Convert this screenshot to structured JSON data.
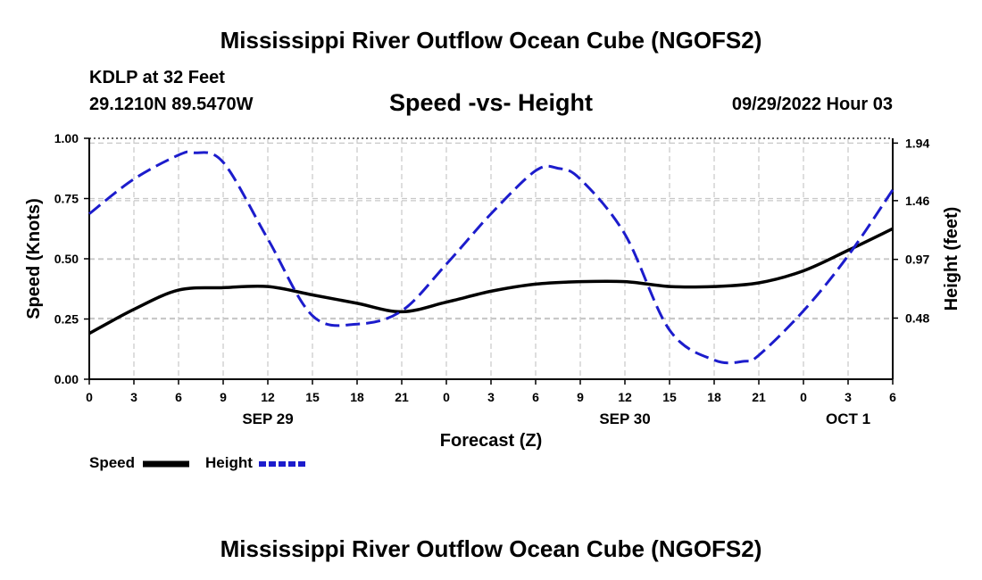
{
  "header": {
    "title": "Mississippi River Outflow Ocean Cube (NGOFS2)",
    "station": "KDLP at 32 Feet",
    "coords": "29.1210N  89.5470W",
    "subtitle": "Speed -vs- Height",
    "datetime": "09/29/2022 Hour 03"
  },
  "footer": {
    "title": "Mississippi River Outflow Ocean Cube (NGOFS2)"
  },
  "colors": {
    "speed": "#000000",
    "height": "#1c1ccc",
    "grid": "#c8c8c8"
  },
  "chart_data": {
    "type": "line",
    "xlabel": "Forecast (Z)",
    "ylabel": "Speed (Knots)",
    "y2label": "Height (feet)",
    "xlim": [
      0,
      54
    ],
    "ylim": [
      0,
      1
    ],
    "y2lim": [
      -0.03,
      1.98
    ],
    "x_ticks": [
      0,
      3,
      6,
      9,
      12,
      15,
      18,
      21,
      24,
      27,
      30,
      33,
      36,
      39,
      42,
      45,
      48,
      51,
      54
    ],
    "x_tick_labels": [
      "0",
      "3",
      "6",
      "9",
      "12",
      "15",
      "18",
      "21",
      "0",
      "3",
      "6",
      "9",
      "12",
      "15",
      "18",
      "21",
      "0",
      "3",
      "6"
    ],
    "day_labels": [
      {
        "x": 12,
        "label": "SEP 29"
      },
      {
        "x": 36,
        "label": "SEP 30"
      },
      {
        "x": 51,
        "label": "OCT 1"
      }
    ],
    "y_ticks": [
      0,
      0.25,
      0.5,
      0.75,
      1.0
    ],
    "y_tick_labels": [
      "0.00",
      "0.25",
      "0.50",
      "0.75",
      "1.00"
    ],
    "y2_ticks": [
      0.48,
      0.97,
      1.46,
      1.94
    ],
    "y2_tick_labels": [
      "0.48",
      "0.97",
      "1.46",
      "1.94"
    ],
    "series": [
      {
        "name": "Speed",
        "axis": "left",
        "style": "solid",
        "x": [
          0,
          3,
          6,
          9,
          12,
          15,
          18,
          21,
          24,
          27,
          30,
          33,
          36,
          39,
          42,
          45,
          48,
          51,
          54
        ],
        "values": [
          0.19,
          0.29,
          0.37,
          0.38,
          0.385,
          0.35,
          0.315,
          0.28,
          0.32,
          0.365,
          0.395,
          0.405,
          0.405,
          0.385,
          0.385,
          0.4,
          0.45,
          0.535,
          0.625
        ]
      },
      {
        "name": "Height",
        "axis": "right",
        "style": "dashed",
        "x": [
          0,
          3,
          6,
          7,
          9,
          12,
          15,
          18,
          21,
          24,
          27,
          30,
          31.5,
          33,
          36,
          39,
          42,
          44,
          45,
          48,
          51,
          54
        ],
        "values": [
          1.35,
          1.64,
          1.84,
          1.86,
          1.78,
          1.14,
          0.5,
          0.43,
          0.54,
          0.93,
          1.35,
          1.71,
          1.73,
          1.64,
          1.18,
          0.38,
          0.13,
          0.12,
          0.17,
          0.54,
          1.0,
          1.55
        ]
      }
    ],
    "legend": [
      {
        "label": "Speed",
        "style": "solid"
      },
      {
        "label": "Height",
        "style": "dashed"
      }
    ]
  }
}
